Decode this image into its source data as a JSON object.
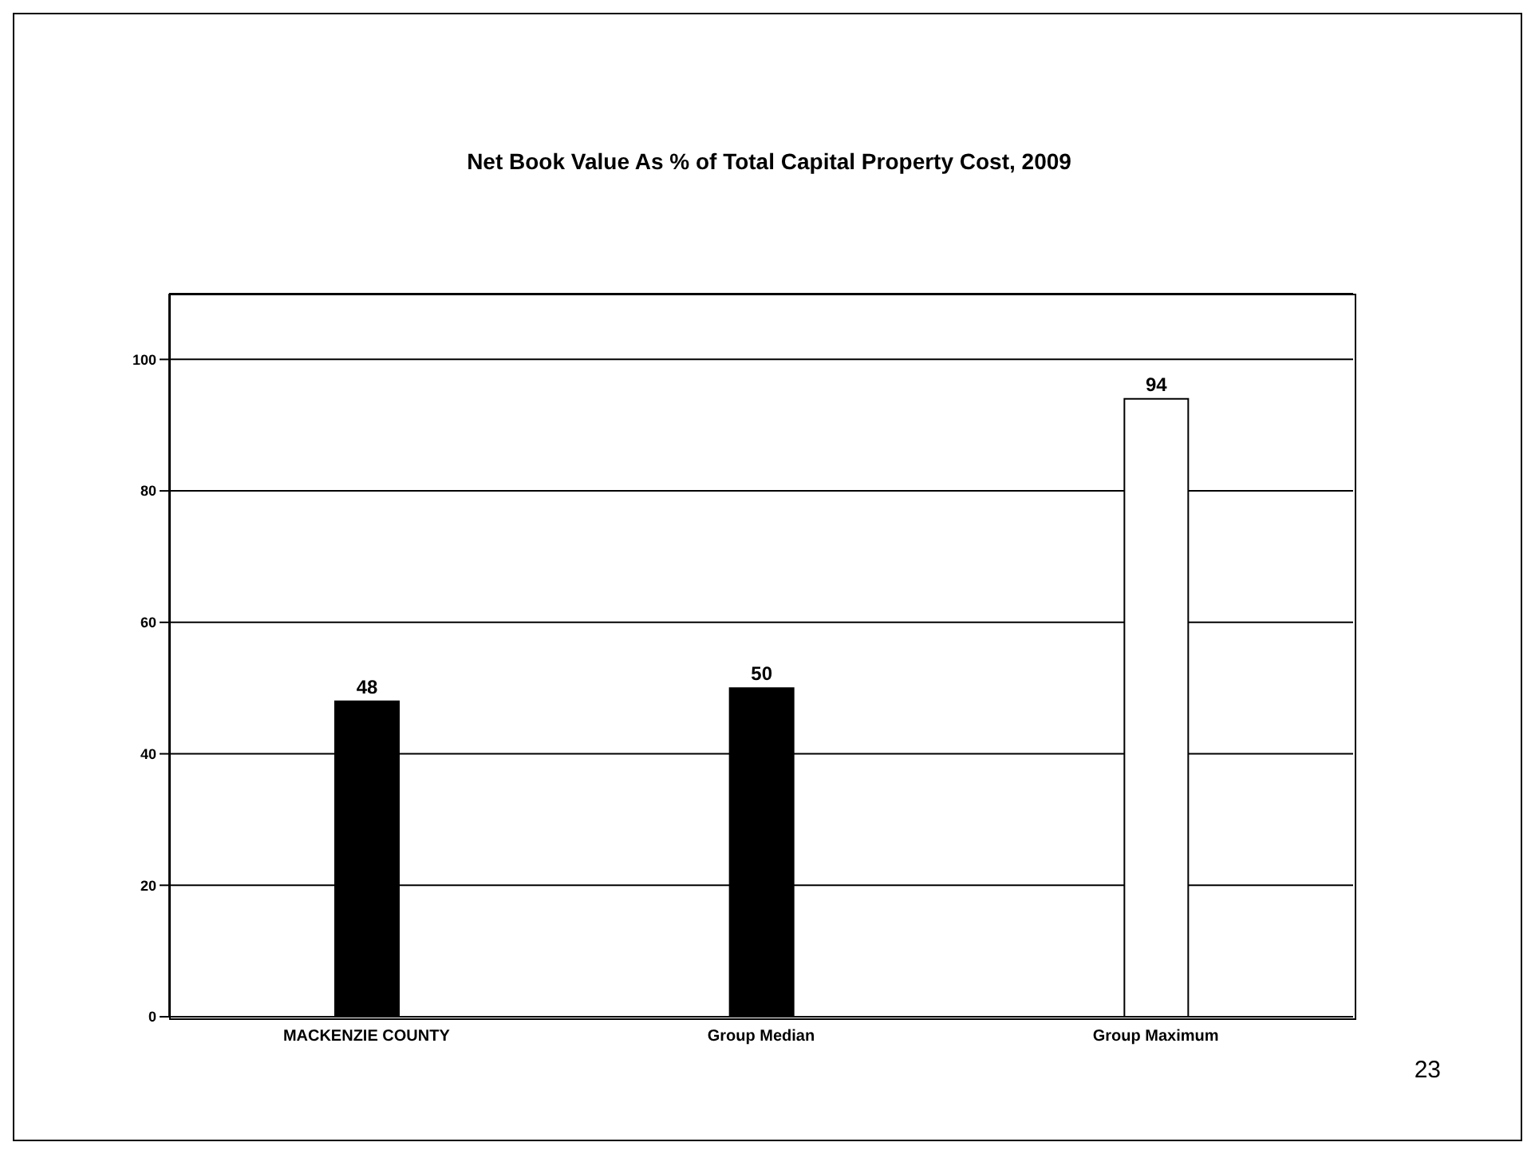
{
  "chart_data": {
    "type": "bar",
    "title": "Net Book Value As % of Total Capital Property Cost, 2009",
    "categories": [
      "MACKENZIE COUNTY",
      "Group Median",
      "Group Maximum"
    ],
    "values": [
      48,
      50,
      94
    ],
    "colors": [
      "#000000",
      "#000000",
      "#ffffff"
    ],
    "ylim": [
      0,
      110
    ],
    "yticks": [
      0,
      20,
      40,
      60,
      80,
      100
    ],
    "grid": "y",
    "data_labels": true,
    "annotations": [
      "23"
    ]
  }
}
